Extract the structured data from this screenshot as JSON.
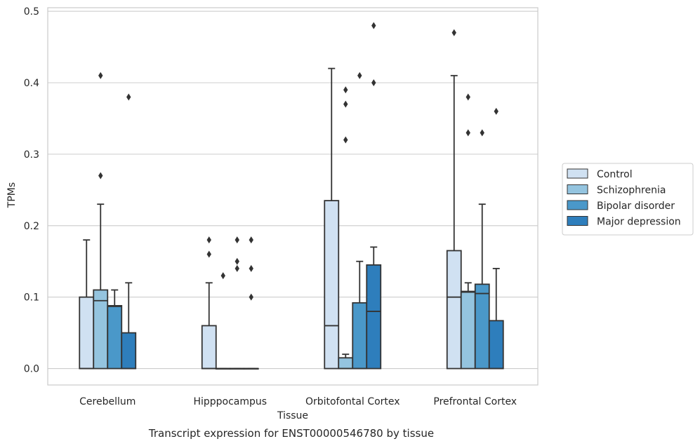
{
  "chart_data": {
    "type": "boxplot",
    "caption": "Transcript expression for ENST00000546780 by tissue",
    "xlabel": "Tissue",
    "ylabel": "TPMs",
    "ylim": [
      -0.023,
      0.505
    ],
    "yticks": [
      "0.0",
      "0.1",
      "0.2",
      "0.3",
      "0.4",
      "0.5"
    ],
    "grid": true,
    "legend_position": "right",
    "categories": [
      "Cerebellum",
      "Hipppocampus",
      "Orbitofontal Cortex",
      "Prefrontal Cortex"
    ],
    "series": [
      {
        "name": "Control",
        "color": "#d0e1f2",
        "boxes": [
          {
            "q1": 0.0,
            "median": 0.0,
            "q3": 0.1,
            "whislo": 0.0,
            "whishi": 0.18,
            "fliers": []
          },
          {
            "q1": 0.0,
            "median": 0.0,
            "q3": 0.06,
            "whislo": 0.0,
            "whishi": 0.12,
            "fliers": [
              0.16,
              0.18
            ]
          },
          {
            "q1": 0.0,
            "median": 0.06,
            "q3": 0.235,
            "whislo": 0.0,
            "whishi": 0.42,
            "fliers": []
          },
          {
            "q1": 0.0,
            "median": 0.1,
            "q3": 0.165,
            "whislo": 0.0,
            "whishi": 0.41,
            "fliers": [
              0.47
            ]
          }
        ]
      },
      {
        "name": "Schizophrenia",
        "color": "#94c4df",
        "boxes": [
          {
            "q1": 0.0,
            "median": 0.095,
            "q3": 0.11,
            "whislo": 0.0,
            "whishi": 0.23,
            "fliers": [
              0.27,
              0.41
            ]
          },
          {
            "q1": 0.0,
            "median": 0.0,
            "q3": 0.0,
            "whislo": 0.0,
            "whishi": 0.0,
            "fliers": [
              0.13
            ]
          },
          {
            "q1": 0.0,
            "median": 0.0,
            "q3": 0.015,
            "whislo": 0.0,
            "whishi": 0.02,
            "fliers": [
              0.32,
              0.37,
              0.39
            ]
          },
          {
            "q1": 0.0,
            "median": 0.107,
            "q3": 0.108,
            "whislo": 0.0,
            "whishi": 0.12,
            "fliers": [
              0.33,
              0.38
            ]
          }
        ]
      },
      {
        "name": "Bipolar disorder",
        "color": "#4a98c9",
        "boxes": [
          {
            "q1": 0.0,
            "median": 0.087,
            "q3": 0.088,
            "whislo": 0.0,
            "whishi": 0.11,
            "fliers": []
          },
          {
            "q1": 0.0,
            "median": 0.0,
            "q3": 0.0,
            "whislo": 0.0,
            "whishi": 0.0,
            "fliers": [
              0.14,
              0.15,
              0.18
            ]
          },
          {
            "q1": 0.0,
            "median": 0.0,
            "q3": 0.092,
            "whislo": 0.0,
            "whishi": 0.15,
            "fliers": [
              0.41
            ]
          },
          {
            "q1": 0.0,
            "median": 0.105,
            "q3": 0.118,
            "whislo": 0.0,
            "whishi": 0.23,
            "fliers": [
              0.33
            ]
          }
        ]
      },
      {
        "name": "Major depression",
        "color": "#2e7ebc",
        "boxes": [
          {
            "q1": 0.0,
            "median": 0.0,
            "q3": 0.05,
            "whislo": 0.0,
            "whishi": 0.12,
            "fliers": [
              0.38
            ]
          },
          {
            "q1": 0.0,
            "median": 0.0,
            "q3": 0.0,
            "whislo": 0.0,
            "whishi": 0.0,
            "fliers": [
              0.1,
              0.14,
              0.18
            ]
          },
          {
            "q1": 0.0,
            "median": 0.08,
            "q3": 0.145,
            "whislo": 0.0,
            "whishi": 0.17,
            "fliers": [
              0.4,
              0.48
            ]
          },
          {
            "q1": 0.0,
            "median": 0.0,
            "q3": 0.067,
            "whislo": 0.0,
            "whishi": 0.14,
            "fliers": [
              0.36
            ]
          }
        ]
      }
    ]
  }
}
